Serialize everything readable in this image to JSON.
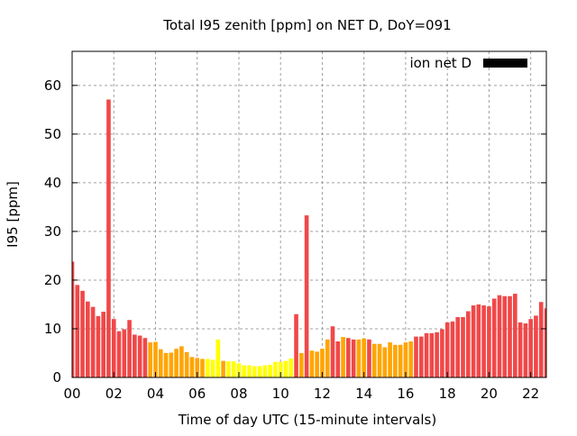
{
  "chart_data": {
    "type": "bar",
    "title": "Total I95 zenith [ppm] on NET D, DoY=091",
    "xlabel": "Time of day UTC (15-minute intervals)",
    "ylabel": "I95 [ppm]",
    "xlim": [
      0,
      22.75
    ],
    "ylim": [
      0,
      67
    ],
    "xticks": [
      "00",
      "02",
      "04",
      "06",
      "08",
      "10",
      "12",
      "14",
      "16",
      "18",
      "20",
      "22"
    ],
    "xtick_values": [
      0,
      2,
      4,
      6,
      8,
      10,
      12,
      14,
      16,
      18,
      20,
      22
    ],
    "yticks": [
      0,
      10,
      20,
      30,
      40,
      50,
      60
    ],
    "grid": true,
    "legend": {
      "label": "ion net D",
      "placement": "top-right",
      "color": "#000000"
    },
    "colors": {
      "r": "#f04848",
      "o": "#ffa500",
      "y": "#ffff00"
    },
    "interval_hours": 0.25,
    "values": [
      23.8,
      19.0,
      17.8,
      15.6,
      14.5,
      12.6,
      13.5,
      57.1,
      12.0,
      9.5,
      9.9,
      11.8,
      8.8,
      8.6,
      8.1,
      7.2,
      7.3,
      5.8,
      5.0,
      5.1,
      5.9,
      6.4,
      5.2,
      4.2,
      4.0,
      3.8,
      3.8,
      3.6,
      7.8,
      3.4,
      3.3,
      3.3,
      2.9,
      2.5,
      2.5,
      2.3,
      2.3,
      2.5,
      2.6,
      3.2,
      3.2,
      3.4,
      3.9,
      13.0,
      5.0,
      33.3,
      5.5,
      5.3,
      5.9,
      7.8,
      10.5,
      7.4,
      8.3,
      8.1,
      7.8,
      7.8,
      8.0,
      7.8,
      6.9,
      6.9,
      6.2,
      7.2,
      6.7,
      6.7,
      7.2,
      7.4,
      8.4,
      8.4,
      9.1,
      9.1,
      9.3,
      9.9,
      11.3,
      11.5,
      12.4,
      12.4,
      13.6,
      14.8,
      15.0,
      14.8,
      14.6,
      16.2,
      16.9,
      16.7,
      16.7,
      17.2,
      11.3,
      11.1,
      12.0,
      12.7,
      15.5,
      14.2
    ],
    "bar_colors": "rrrrrrrrrrrrrrroooooooooooyyyoyyyyyyyyyyyyyroroooorrorrooroooooooorrrrrrrrrrrrrrrrrrrrrrrrrr"
  }
}
